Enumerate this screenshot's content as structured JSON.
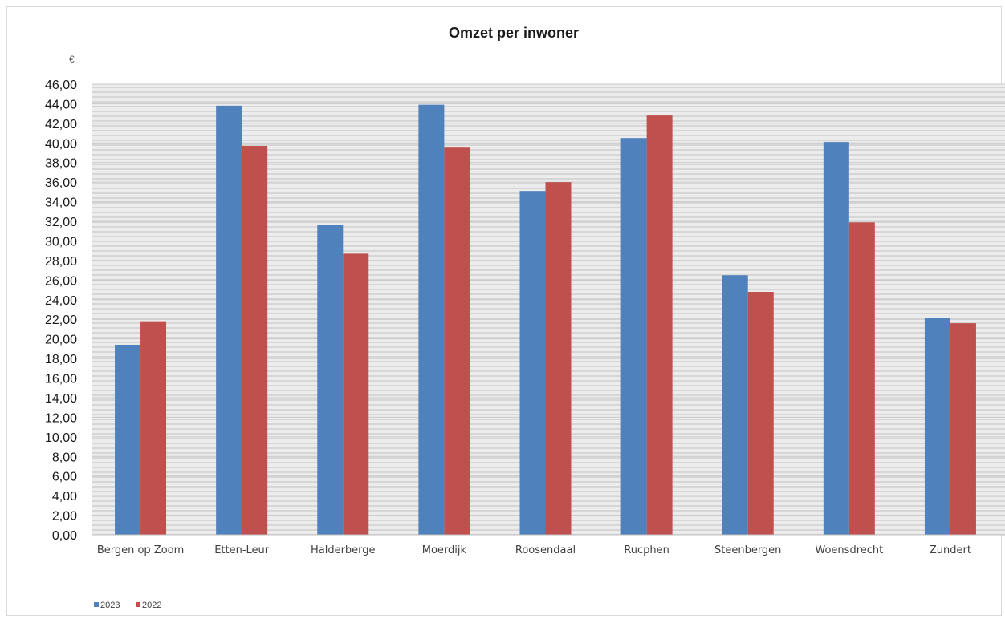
{
  "chart_data": {
    "type": "bar",
    "title": "Omzet per inwoner",
    "unit_label": "€",
    "xlabel": "",
    "ylabel": "",
    "ylim": [
      0,
      46
    ],
    "ytick_step": 2,
    "ytick_labels": [
      "0,00",
      "2,00",
      "4,00",
      "6,00",
      "8,00",
      "10,00",
      "12,00",
      "14,00",
      "16,00",
      "18,00",
      "20,00",
      "22,00",
      "24,00",
      "26,00",
      "28,00",
      "30,00",
      "32,00",
      "34,00",
      "36,00",
      "38,00",
      "40,00",
      "42,00",
      "44,00",
      "46,00"
    ],
    "categories": [
      "Bergen op Zoom",
      "Etten-Leur",
      "Halderberge",
      "Moerdijk",
      "Roosendaal",
      "Rucphen",
      "Steenbergen",
      "Woensdrecht",
      "Zundert"
    ],
    "series": [
      {
        "name": "2023",
        "color": "#4f81bd",
        "values": [
          19.4,
          43.8,
          31.6,
          43.9,
          35.1,
          40.5,
          26.5,
          40.1,
          22.1
        ]
      },
      {
        "name": "2022",
        "color": "#c0504d",
        "values": [
          21.8,
          39.7,
          28.7,
          39.6,
          36.0,
          42.8,
          24.8,
          31.9,
          21.6
        ]
      }
    ],
    "legend_position": "bottom-left",
    "grid": true
  }
}
